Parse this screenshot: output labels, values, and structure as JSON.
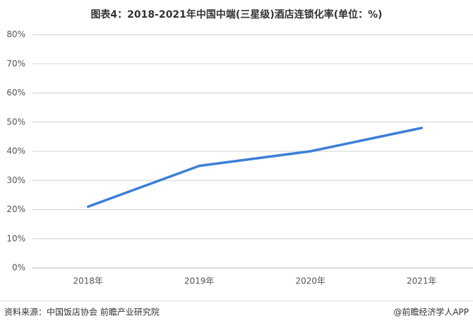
{
  "chart_data": {
    "type": "line",
    "title": "图表4：2018-2021年中国中端(三星级)酒店连锁化率(单位：%)",
    "categories": [
      "2018年",
      "2019年",
      "2020年",
      "2021年"
    ],
    "values": [
      21,
      35,
      40,
      48
    ],
    "color": "#3c7fd9",
    "ylim": [
      0,
      80
    ],
    "yticks": [
      {
        "value": 0,
        "label": "0%"
      },
      {
        "value": 10,
        "label": "10%"
      },
      {
        "value": 20,
        "label": "20%"
      },
      {
        "value": 30,
        "label": "30%"
      },
      {
        "value": 40,
        "label": "40%"
      },
      {
        "value": 50,
        "label": "50%"
      },
      {
        "value": 60,
        "label": "60%"
      },
      {
        "value": 70,
        "label": "70%"
      },
      {
        "value": 80,
        "label": "80%"
      }
    ],
    "grid": true
  },
  "footer": {
    "source": "资料来源：中国饭店协会 前瞻产业研究院",
    "credit": "@前瞻经济学人APP"
  }
}
